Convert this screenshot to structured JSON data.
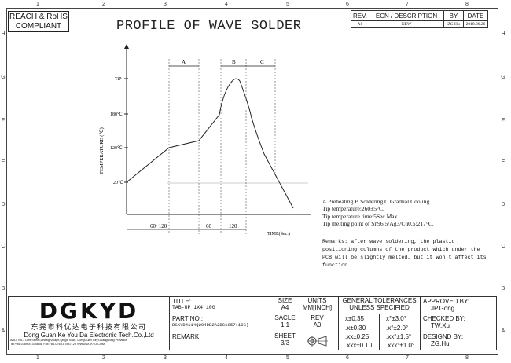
{
  "zones": {
    "cols": [
      "1",
      "2",
      "3",
      "4",
      "5",
      "6",
      "7",
      "8"
    ],
    "rows": [
      "H",
      "G",
      "F",
      "E",
      "D",
      "C",
      "B",
      "A"
    ]
  },
  "compliance": {
    "line1": "REACH & RoHS",
    "line2": "COMPLIANT"
  },
  "title": "PROFILE OF WAVE SOLDER",
  "rev_table": {
    "headers": [
      "REV.",
      "ECN / DESCRIPTION",
      "BY",
      "DATE"
    ],
    "row": [
      "A0",
      "NEW",
      "ZG.Hu",
      "2018.06.26"
    ]
  },
  "chart_labels": {
    "y_axis": "TEMPERATURE (℃)",
    "x_axis": "TIME(Sec.)",
    "y_ticks": [
      "TiP",
      "180℃",
      "120℃",
      "20℃"
    ],
    "zones": [
      "A",
      "B",
      "C"
    ],
    "dims": [
      "60~120",
      "60",
      "120"
    ]
  },
  "notes": [
    "A.Preheating  B.Soldering  C.Gradual Cooling",
    "Tip temperature:260±5°C.",
    "Tip temperature time:5Sec Max.",
    "Tip melting point of Sn96.5/Ag3/Cu0.5:217°C."
  ],
  "remarks": [
    "Remarks: after wave soldering, the plastic",
    "positioning columns of the product  which under the",
    "PCB will be slightly melted, but it won't affect its",
    "function."
  ],
  "title_block": {
    "logo": "DGKYD",
    "company_cn": "东莞市科优达电子科技有限公司",
    "company_en": "Dong Guan Ke You Da Electronic Tech.Co.,Ltd",
    "address_line1": "ADD: No.1 Lihe Street,Lihang Village,Qingxi town, DongGuan City,GuangDong Province",
    "address_line2": "Tel:+86-0769-87334608; Fax:+86-0769-87847129  WWW.DGKYD.COM",
    "title_label": "TITLE:",
    "title_value": "TAB-UP 1X4 10G",
    "part_label": "PART NO.:",
    "part_value": "DGKYD4114Q204DB2A2DC1057(10G)",
    "remark_label": "REMARK:",
    "size_label": "SIZE",
    "size_value": "A4",
    "scale_label": "SACLE",
    "scale_value": "1:1",
    "sheet_label": "SHEET",
    "sheet_value": "3/3",
    "units_label": "UNITS",
    "units_value": "MM[INCH]",
    "rev_label": "REV",
    "rev_value": "A0",
    "tol_title": "GENERAL TOLERANCES",
    "tol_sub": "UNLESS SPECIFIED",
    "tol": [
      [
        "x±0.35",
        "x°±3.0°"
      ],
      [
        ".x±0.30",
        ".x°±2.0°"
      ],
      [
        ".xx±0.25",
        ".xx°±1.5°"
      ],
      [
        ".xxx±0.10",
        ".xxx°±1.0°"
      ]
    ],
    "approved_label": "APPROVED BY:",
    "approved_value": "JP.Gong",
    "checked_label": "CHECKED BY:",
    "checked_value": "TW.Xu",
    "designed_label": "DESIGND BY:",
    "designed_value": "ZG.Hu"
  }
}
